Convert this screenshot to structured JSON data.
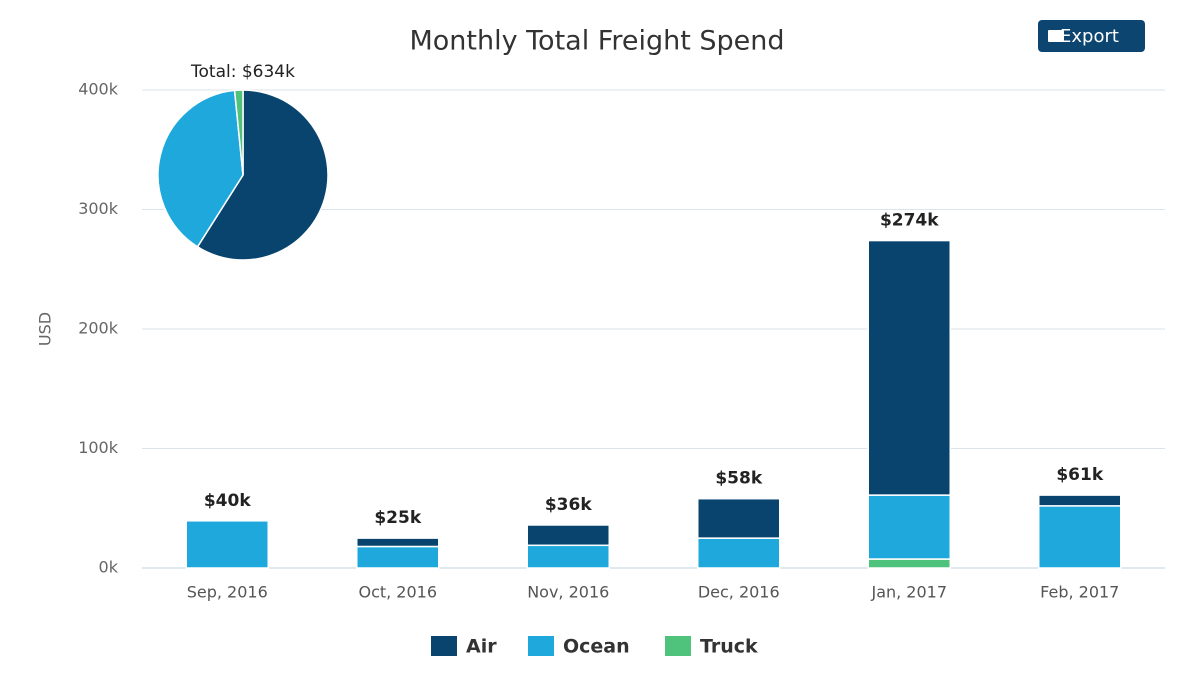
{
  "export_button": "Export",
  "chart_data": [
    {
      "type": "bar",
      "title": "Monthly Total Freight Spend",
      "ylabel": "USD",
      "categories": [
        "Sep, 2016",
        "Oct, 2016",
        "Nov, 2016",
        "Dec, 2016",
        "Jan, 2017",
        "Feb, 2017"
      ],
      "series": [
        {
          "name": "Air",
          "color": "#08446e",
          "values": [
            0,
            7000,
            17000,
            33000,
            213000,
            9000
          ]
        },
        {
          "name": "Ocean",
          "color": "#1ea8dc",
          "values": [
            39500,
            18000,
            19000,
            25000,
            53500,
            52000
          ]
        },
        {
          "name": "Truck",
          "color": "#4fc27c",
          "values": [
            0,
            0,
            0,
            0,
            7500,
            0
          ]
        }
      ],
      "stacked": true,
      "total_labels": [
        "$40k",
        "$25k",
        "$36k",
        "$58k",
        "$274k",
        "$61k"
      ],
      "ylim": [
        0,
        400000
      ],
      "yticks": [
        {
          "value": 0,
          "label": "0k"
        },
        {
          "value": 100000,
          "label": "100k"
        },
        {
          "value": 200000,
          "label": "200k"
        },
        {
          "value": 300000,
          "label": "300k"
        },
        {
          "value": 400000,
          "label": "400k"
        }
      ],
      "grid": true,
      "legend": "bottom"
    },
    {
      "type": "pie",
      "title": "Total: $634k",
      "values": [
        374000,
        250000,
        10000
      ],
      "colors": [
        "#08446e",
        "#1ea8dc",
        "#4fc27c"
      ]
    }
  ]
}
